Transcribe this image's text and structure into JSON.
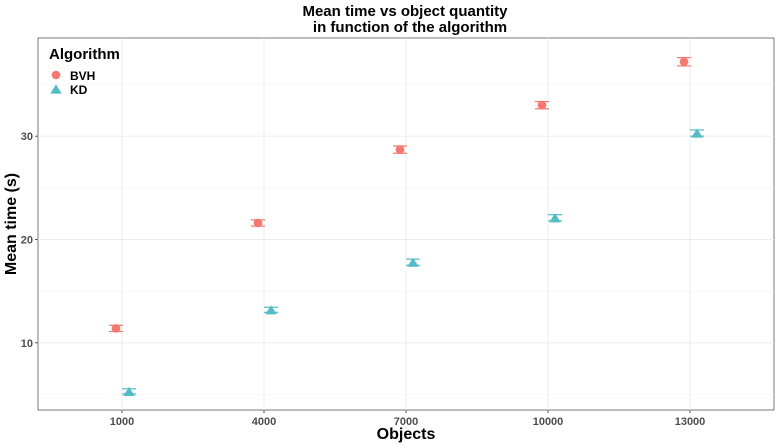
{
  "chart_data": {
    "type": "scatter",
    "title": "Mean time vs object quantity",
    "subtitle": "in function of the algorithm",
    "xlabel": "Objects",
    "ylabel": "Mean time (s)",
    "categories": [
      "1000",
      "4000",
      "7000",
      "10000",
      "13000"
    ],
    "ylim": [
      3.5,
      39.5
    ],
    "yticks": [
      10,
      20,
      30
    ],
    "grid": true,
    "legend": {
      "title": "Algorithm",
      "position": "top-left"
    },
    "series": [
      {
        "name": "BVH",
        "color": "#F8766D",
        "marker": "circle",
        "values": [
          11.4,
          21.6,
          28.7,
          33.0,
          37.2
        ],
        "error": [
          0.3,
          0.3,
          0.35,
          0.35,
          0.4
        ]
      },
      {
        "name": "KD",
        "color": "#4FBCC6",
        "marker": "triangle",
        "values": [
          5.3,
          13.2,
          17.8,
          22.1,
          30.3
        ],
        "error": [
          0.25,
          0.25,
          0.3,
          0.3,
          0.3
        ]
      }
    ]
  }
}
